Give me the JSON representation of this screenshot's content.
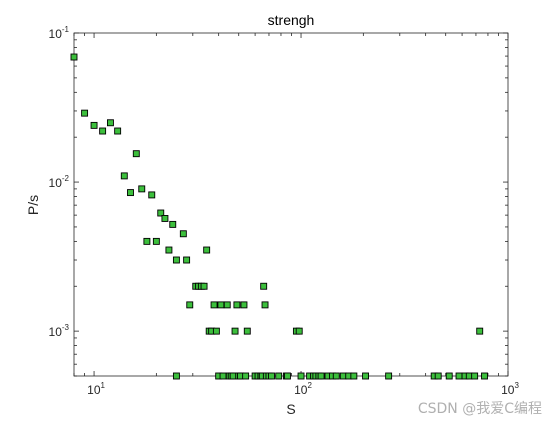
{
  "chart_data": {
    "type": "scatter",
    "title": "strengh",
    "xlabel": "S",
    "ylabel": "P/s",
    "xscale": "log",
    "yscale": "log",
    "xlim": [
      8,
      1000
    ],
    "ylim": [
      0.0005,
      0.1
    ],
    "x_ticks": [
      {
        "base": "10",
        "exp": "1",
        "value": 10
      },
      {
        "base": "10",
        "exp": "2",
        "value": 100
      },
      {
        "base": "10",
        "exp": "3",
        "value": 1000
      }
    ],
    "y_ticks": [
      {
        "base": "10",
        "exp": "-1",
        "value": 0.1
      },
      {
        "base": "10",
        "exp": "-2",
        "value": 0.01
      },
      {
        "base": "10",
        "exp": "-3",
        "value": 0.001
      }
    ],
    "grid": false,
    "legend": "none",
    "marker": "square",
    "marker_color": "#3cbf3c",
    "marker_edge": "#000000",
    "points": [
      [
        8,
        0.069
      ],
      [
        9,
        0.029
      ],
      [
        10,
        0.024
      ],
      [
        11,
        0.022
      ],
      [
        12,
        0.025
      ],
      [
        13,
        0.022
      ],
      [
        14,
        0.011
      ],
      [
        15,
        0.0085
      ],
      [
        16,
        0.0155
      ],
      [
        17,
        0.009
      ],
      [
        18,
        0.004
      ],
      [
        19,
        0.0082
      ],
      [
        20,
        0.004
      ],
      [
        21,
        0.0062
      ],
      [
        22,
        0.0057
      ],
      [
        23,
        0.0035
      ],
      [
        24,
        0.0052
      ],
      [
        25,
        0.003
      ],
      [
        25,
        0.0005
      ],
      [
        27,
        0.0045
      ],
      [
        28,
        0.003
      ],
      [
        29,
        0.0015
      ],
      [
        31,
        0.002
      ],
      [
        32,
        0.002
      ],
      [
        33,
        0.002
      ],
      [
        34,
        0.002
      ],
      [
        35,
        0.0035
      ],
      [
        36,
        0.001
      ],
      [
        37,
        0.001
      ],
      [
        38,
        0.0015
      ],
      [
        39,
        0.001
      ],
      [
        40,
        0.0005
      ],
      [
        41,
        0.0015
      ],
      [
        42,
        0.0005
      ],
      [
        44,
        0.0015
      ],
      [
        45,
        0.0005
      ],
      [
        46,
        0.0005
      ],
      [
        47,
        0.0005
      ],
      [
        48,
        0.001
      ],
      [
        49,
        0.0015
      ],
      [
        50,
        0.0005
      ],
      [
        51,
        0.0005
      ],
      [
        53,
        0.0015
      ],
      [
        54,
        0.0005
      ],
      [
        55,
        0.001
      ],
      [
        60,
        0.0005
      ],
      [
        62,
        0.0005
      ],
      [
        64,
        0.0005
      ],
      [
        65,
        0.0005
      ],
      [
        66,
        0.002
      ],
      [
        67,
        0.0015
      ],
      [
        68,
        0.0005
      ],
      [
        70,
        0.0005
      ],
      [
        72,
        0.0005
      ],
      [
        78,
        0.0005
      ],
      [
        85,
        0.0005
      ],
      [
        86,
        0.0005
      ],
      [
        95,
        0.001
      ],
      [
        98,
        0.001
      ],
      [
        100,
        0.0005
      ],
      [
        110,
        0.0005
      ],
      [
        115,
        0.0005
      ],
      [
        118,
        0.0005
      ],
      [
        122,
        0.0005
      ],
      [
        125,
        0.0005
      ],
      [
        135,
        0.0005
      ],
      [
        142,
        0.0005
      ],
      [
        148,
        0.0005
      ],
      [
        160,
        0.0005
      ],
      [
        170,
        0.0005
      ],
      [
        180,
        0.0005
      ],
      [
        205,
        0.0005
      ],
      [
        265,
        0.0005
      ],
      [
        440,
        0.0005
      ],
      [
        460,
        0.0005
      ],
      [
        520,
        0.0005
      ],
      [
        580,
        0.0005
      ],
      [
        620,
        0.0005
      ],
      [
        650,
        0.0005
      ],
      [
        690,
        0.0005
      ],
      [
        730,
        0.001
      ],
      [
        770,
        0.0005
      ]
    ]
  },
  "watermark": "CSDN @我爱C编程"
}
